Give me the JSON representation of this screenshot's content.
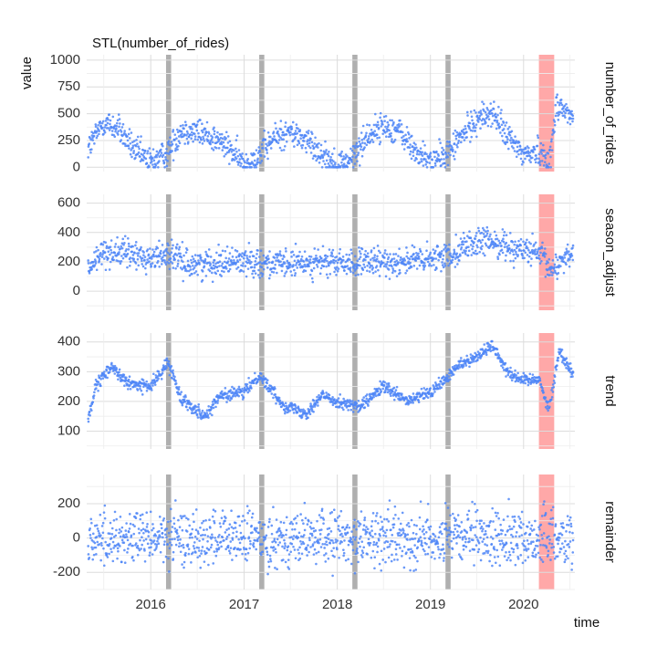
{
  "chart_data": {
    "type": "scatter",
    "title": "STL(number_of_rides)",
    "xlabel": "time",
    "ylabel": "value",
    "x_tick_labels": [
      "2016",
      "2017",
      "2018",
      "2019",
      "2020"
    ],
    "xlim": [
      "2015-04-25",
      "2020-07-20"
    ],
    "point_color": "#4f86f7",
    "grid": true,
    "highlights": [
      {
        "start": "2016-03-01",
        "end": "2016-03-21",
        "color": "#a6a6a6"
      },
      {
        "start": "2017-03-01",
        "end": "2017-03-21",
        "color": "#a6a6a6"
      },
      {
        "start": "2018-03-01",
        "end": "2018-03-21",
        "color": "#a6a6a6"
      },
      {
        "start": "2019-03-01",
        "end": "2019-03-21",
        "color": "#a6a6a6"
      },
      {
        "start": "2020-03-01",
        "end": "2020-04-30",
        "color": "#ff9e9e"
      }
    ],
    "facets": [
      {
        "name": "number_of_rides",
        "ylim": [
          -40,
          1050
        ],
        "yticks": [
          0,
          250,
          500,
          750,
          1000
        ],
        "series": [
          [
            "2015-05-01",
            180
          ],
          [
            "2015-07-01",
            420
          ],
          [
            "2015-09-01",
            350
          ],
          [
            "2015-11-01",
            150
          ],
          [
            "2016-01-01",
            50
          ],
          [
            "2016-03-01",
            120
          ],
          [
            "2016-05-01",
            350
          ],
          [
            "2016-07-01",
            330
          ],
          [
            "2016-09-01",
            280
          ],
          [
            "2016-11-01",
            180
          ],
          [
            "2017-01-01",
            30
          ],
          [
            "2017-03-01",
            110
          ],
          [
            "2017-05-01",
            280
          ],
          [
            "2017-07-01",
            330
          ],
          [
            "2017-09-01",
            250
          ],
          [
            "2017-11-01",
            130
          ],
          [
            "2018-01-01",
            20
          ],
          [
            "2018-03-01",
            80
          ],
          [
            "2018-05-01",
            300
          ],
          [
            "2018-07-01",
            380
          ],
          [
            "2018-09-01",
            340
          ],
          [
            "2018-11-01",
            150
          ],
          [
            "2019-01-01",
            50
          ],
          [
            "2019-03-01",
            110
          ],
          [
            "2019-05-01",
            280
          ],
          [
            "2019-07-01",
            450
          ],
          [
            "2019-09-01",
            510
          ],
          [
            "2019-11-01",
            280
          ],
          [
            "2020-01-01",
            120
          ],
          [
            "2020-03-01",
            150
          ],
          [
            "2020-04-15",
            70
          ],
          [
            "2020-05-10",
            600
          ],
          [
            "2020-07-15",
            450
          ]
        ]
      },
      {
        "name": "season_adjust",
        "ylim": [
          -130,
          660
        ],
        "yticks": [
          0,
          200,
          400,
          600
        ],
        "series": [
          [
            "2015-05-01",
            140
          ],
          [
            "2015-07-01",
            270
          ],
          [
            "2015-10-01",
            260
          ],
          [
            "2016-01-01",
            220
          ],
          [
            "2016-03-01",
            260
          ],
          [
            "2016-06-01",
            180
          ],
          [
            "2016-10-01",
            200
          ],
          [
            "2017-01-01",
            210
          ],
          [
            "2017-06-01",
            180
          ],
          [
            "2017-10-01",
            200
          ],
          [
            "2018-01-01",
            190
          ],
          [
            "2018-06-01",
            190
          ],
          [
            "2018-10-01",
            210
          ],
          [
            "2019-01-01",
            210
          ],
          [
            "2019-03-15",
            250
          ],
          [
            "2019-06-01",
            320
          ],
          [
            "2019-09-01",
            340
          ],
          [
            "2019-12-01",
            290
          ],
          [
            "2020-02-01",
            270
          ],
          [
            "2020-03-15",
            230
          ],
          [
            "2020-04-15",
            140
          ],
          [
            "2020-07-15",
            280
          ]
        ]
      },
      {
        "name": "trend",
        "ylim": [
          40,
          430
        ],
        "yticks": [
          100,
          200,
          300,
          400
        ],
        "series": [
          [
            "2015-05-01",
            140
          ],
          [
            "2015-06-01",
            250
          ],
          [
            "2015-08-01",
            320
          ],
          [
            "2015-10-01",
            260
          ],
          [
            "2016-01-01",
            250
          ],
          [
            "2016-03-10",
            330
          ],
          [
            "2016-05-01",
            210
          ],
          [
            "2016-08-01",
            150
          ],
          [
            "2016-10-01",
            220
          ],
          [
            "2017-01-01",
            230
          ],
          [
            "2017-03-01",
            290
          ],
          [
            "2017-06-01",
            190
          ],
          [
            "2017-09-01",
            160
          ],
          [
            "2017-11-01",
            220
          ],
          [
            "2018-01-01",
            200
          ],
          [
            "2018-04-01",
            180
          ],
          [
            "2018-07-01",
            250
          ],
          [
            "2018-10-01",
            200
          ],
          [
            "2019-01-01",
            230
          ],
          [
            "2019-03-10",
            280
          ],
          [
            "2019-05-01",
            330
          ],
          [
            "2019-07-01",
            350
          ],
          [
            "2019-09-01",
            390
          ],
          [
            "2019-11-01",
            300
          ],
          [
            "2020-01-01",
            270
          ],
          [
            "2020-03-01",
            280
          ],
          [
            "2020-04-10",
            170
          ],
          [
            "2020-05-20",
            370
          ],
          [
            "2020-07-15",
            290
          ]
        ]
      },
      {
        "name": "remainder",
        "ylim": [
          -300,
          370
        ],
        "yticks": [
          -200,
          0,
          200
        ],
        "series": [
          [
            "2015-05-01",
            0
          ],
          [
            "2016-01-01",
            0
          ],
          [
            "2017-01-01",
            0
          ],
          [
            "2018-01-01",
            0
          ],
          [
            "2019-01-01",
            0
          ],
          [
            "2020-01-01",
            0
          ],
          [
            "2020-07-15",
            0
          ]
        ],
        "noise_scale": 80
      }
    ]
  }
}
